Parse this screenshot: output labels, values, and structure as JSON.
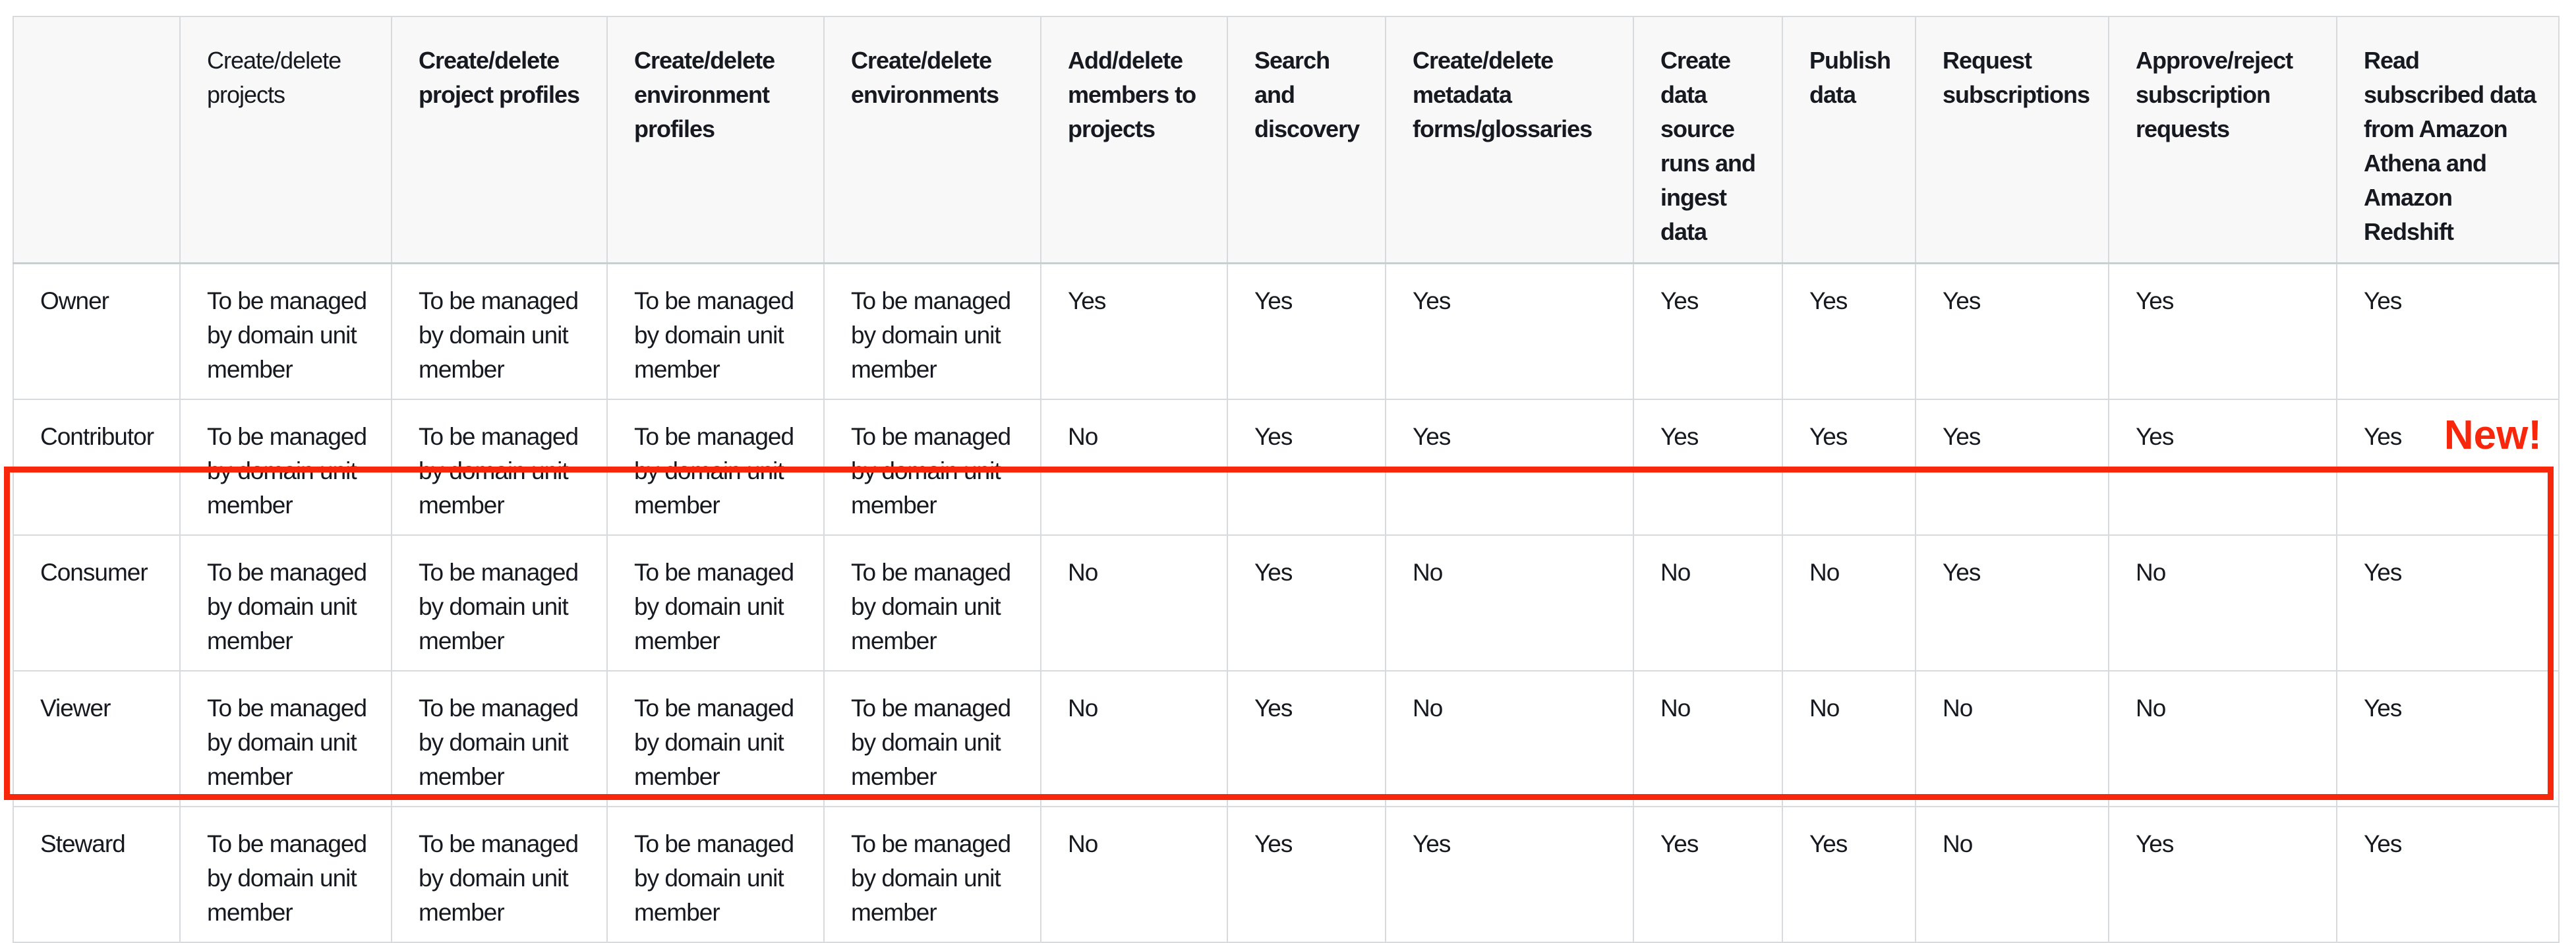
{
  "page": {
    "background_color": "#ffffff",
    "text_color": "#16191f",
    "table_border_color": "#d8dbdd",
    "header_background_color": "#f8f8f9"
  },
  "annotation": {
    "new_badge_label": "New!",
    "highlight_color": "#f8270c",
    "highlighted_roles": [
      "Consumer",
      "Viewer",
      "Steward"
    ]
  },
  "table": {
    "corner_label": "",
    "columns": [
      {
        "label": "Create/delete projects",
        "bold": false
      },
      {
        "label": "Create/delete project profiles",
        "bold": true
      },
      {
        "label": "Create/delete environment profiles",
        "bold": true
      },
      {
        "label": "Create/delete environments",
        "bold": true
      },
      {
        "label": "Add/delete members to projects",
        "bold": true
      },
      {
        "label": "Search and discovery",
        "bold": true
      },
      {
        "label": "Create/delete metadata forms/glossaries",
        "bold": true
      },
      {
        "label": "Create data source runs and ingest data",
        "bold": true
      },
      {
        "label": "Publish data",
        "bold": true
      },
      {
        "label": "Request subscriptions",
        "bold": true
      },
      {
        "label": "Approve/reject subscription requests",
        "bold": true
      },
      {
        "label": "Read subscribed data from Amazon Athena and Amazon Redshift",
        "bold": true
      }
    ],
    "rows": [
      {
        "role": "Owner",
        "values": [
          "To be managed by domain unit member",
          "To be managed by domain unit member",
          "To be managed by domain unit member",
          "To be managed by domain unit member",
          "Yes",
          "Yes",
          "Yes",
          "Yes",
          "Yes",
          "Yes",
          "Yes",
          "Yes"
        ],
        "highlighted": false
      },
      {
        "role": "Contributor",
        "values": [
          "To be managed by domain unit member",
          "To be managed by domain unit member",
          "To be managed by domain unit member",
          "To be managed by domain unit member",
          "No",
          "Yes",
          "Yes",
          "Yes",
          "Yes",
          "Yes",
          "Yes",
          "Yes"
        ],
        "highlighted": false
      },
      {
        "role": "Consumer",
        "values": [
          "To be managed by domain unit member",
          "To be managed by domain unit member",
          "To be managed by domain unit member",
          "To be managed by domain unit member",
          "No",
          "Yes",
          "No",
          "No",
          "No",
          "Yes",
          "No",
          "Yes"
        ],
        "highlighted": true
      },
      {
        "role": "Viewer",
        "values": [
          "To be managed by domain unit member",
          "To be managed by domain unit member",
          "To be managed by domain unit member",
          "To be managed by domain unit member",
          "No",
          "Yes",
          "No",
          "No",
          "No",
          "No",
          "No",
          "Yes"
        ],
        "highlighted": true
      },
      {
        "role": "Steward",
        "values": [
          "To be managed by domain unit member",
          "To be managed by domain unit member",
          "To be managed by domain unit member",
          "To be managed by domain unit member",
          "No",
          "Yes",
          "Yes",
          "Yes",
          "Yes",
          "No",
          "Yes",
          "Yes"
        ],
        "highlighted": true
      }
    ]
  }
}
